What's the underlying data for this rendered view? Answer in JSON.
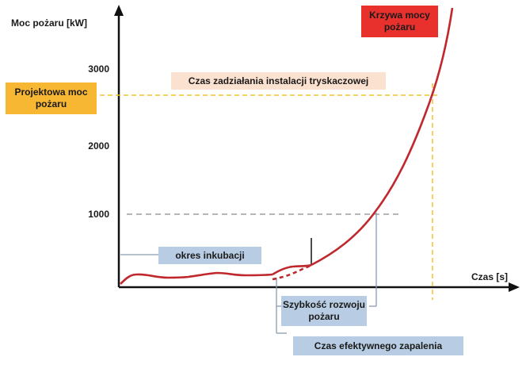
{
  "axes": {
    "y_label": "Moc pożaru [kW]",
    "x_label": "Czas [s]",
    "y_ticks": [
      "3000",
      "2000",
      "1000"
    ]
  },
  "labels": {
    "curve": "Krzywa mocy pożaru",
    "design_power": "Projektowa moc pożaru",
    "sprinkler_time": "Czas zadziałania instalacji tryskaczowej",
    "incubation": "okres inkubacji",
    "growth_rate": "Szybkość rozwoju pożaru",
    "effective_ignition": "Czas efektywnego zapalenia"
  },
  "colors": {
    "curve": "#c0282d",
    "design_box": "#f7b733",
    "curve_box": "#e8312d",
    "sprinkler_box": "#fbe1cf",
    "info_box": "#b8cde3",
    "dash_yellow": "#f2c230",
    "dash_gray": "#8a8a8a"
  }
}
